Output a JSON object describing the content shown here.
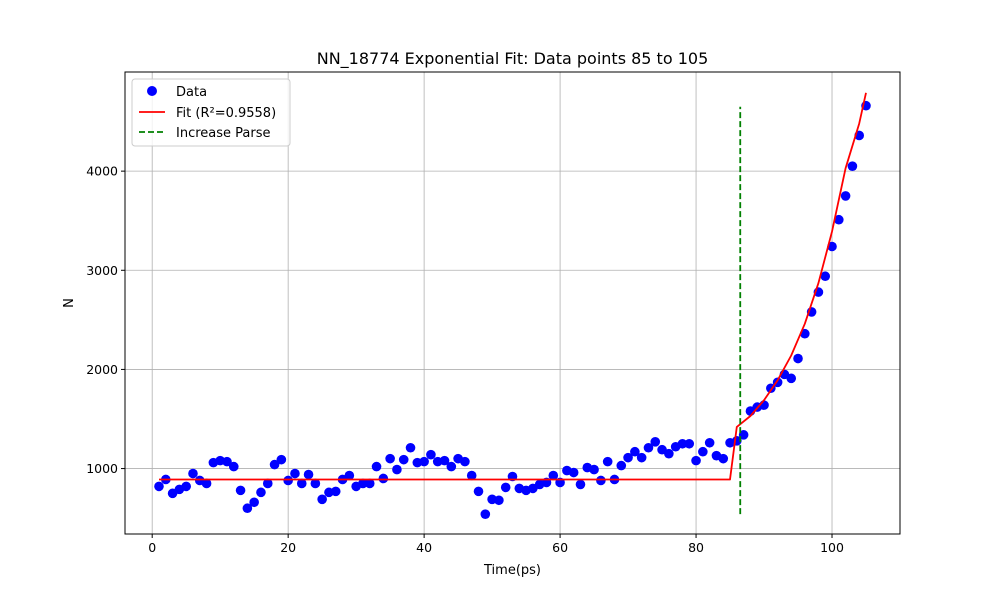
{
  "chart_data": {
    "type": "scatter",
    "title": "NN_18774 Exponential Fit: Data points 85 to 105",
    "xlabel": "Time(ps)",
    "ylabel": "N",
    "xlim": [
      -4,
      110
    ],
    "ylim": [
      340,
      5000
    ],
    "x_ticks": [
      0,
      20,
      40,
      60,
      80,
      100
    ],
    "y_ticks": [
      1000,
      2000,
      3000,
      4000
    ],
    "grid": true,
    "legend_position": "top-left",
    "colors": {
      "data": "#0000ff",
      "fit": "#ff0000",
      "parse": "#008000",
      "grid": "#b0b0b0"
    },
    "series": [
      {
        "name": "Data",
        "kind": "scatter",
        "x": [
          1,
          2,
          3,
          4,
          5,
          6,
          7,
          8,
          9,
          10,
          11,
          12,
          13,
          14,
          15,
          16,
          17,
          18,
          19,
          20,
          21,
          22,
          23,
          24,
          25,
          26,
          27,
          28,
          29,
          30,
          31,
          32,
          33,
          34,
          35,
          36,
          37,
          38,
          39,
          40,
          41,
          42,
          43,
          44,
          45,
          46,
          47,
          48,
          49,
          50,
          51,
          52,
          53,
          54,
          55,
          56,
          57,
          58,
          59,
          60,
          61,
          62,
          63,
          64,
          65,
          66,
          67,
          68,
          69,
          70,
          71,
          72,
          73,
          74,
          75,
          76,
          77,
          78,
          79,
          80,
          81,
          82,
          83,
          84,
          85,
          86,
          87,
          88,
          89,
          90,
          91,
          92,
          93,
          94,
          95,
          96,
          97,
          98,
          99,
          100,
          101,
          102,
          103,
          104,
          105
        ],
        "y": [
          820,
          890,
          750,
          790,
          820,
          950,
          880,
          850,
          1060,
          1080,
          1070,
          1020,
          780,
          600,
          660,
          760,
          850,
          1040,
          1090,
          880,
          950,
          850,
          940,
          850,
          690,
          760,
          770,
          890,
          930,
          820,
          850,
          850,
          1020,
          900,
          1100,
          990,
          1090,
          1210,
          1060,
          1070,
          1140,
          1070,
          1080,
          1020,
          1100,
          1070,
          930,
          770,
          540,
          690,
          680,
          810,
          920,
          800,
          780,
          800,
          840,
          860,
          930,
          860,
          980,
          960,
          840,
          1010,
          990,
          880,
          1070,
          890,
          1030,
          1110,
          1170,
          1110,
          1210,
          1270,
          1190,
          1150,
          1220,
          1250,
          1250,
          1080,
          1170,
          1260,
          1130,
          1100,
          1260,
          1280,
          1340,
          1580,
          1620,
          1640,
          1810,
          1870,
          1950,
          1910,
          2110,
          2360,
          2580,
          2780,
          2940,
          3240,
          3510,
          3750,
          4050,
          4360,
          4660
        ]
      },
      {
        "name": "Fit (R²=0.9558)",
        "kind": "line",
        "x": [
          1,
          85,
          86,
          88,
          90,
          92,
          94,
          96,
          98,
          100,
          102,
          104,
          105
        ],
        "y": [
          890,
          890,
          1420,
          1530,
          1690,
          1890,
          2140,
          2460,
          2870,
          3390,
          4030,
          4480,
          4790
        ]
      },
      {
        "name": "Increase Parse",
        "kind": "vline",
        "x": 86.5,
        "y_range": [
          540,
          4650
        ]
      }
    ]
  }
}
